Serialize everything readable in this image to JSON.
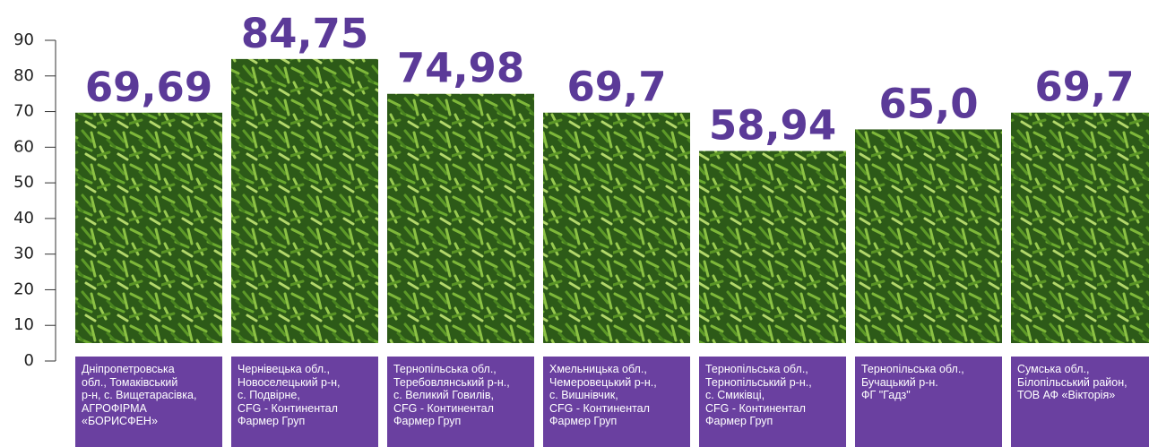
{
  "chart_data": {
    "type": "bar",
    "categories": [
      "Дніпропетровська\nобл., Томаківський\nр-н, с. Вищетарасівка,\nАГРОФІРМА\n«БОРИСФЕН»",
      "Чернівецька обл.,\nНовоселецький р-н,\nс. Подвірне,\nCFG - Континентал\nФармер Груп",
      "Тернопільська обл.,\nТеребовлянський р-н.,\nс. Великий Говилів,\nCFG - Континентал\nФармер Груп",
      "Хмельницька обл.,\nЧемеровецький р-н.,\nс. Вишнівчик,\nCFG - Континентал\nФармер Груп",
      "Тернопільська обл.,\nТернопільський р-н.,\nс. Смиківці,\nCFG - Континентал\nФармер Груп",
      "Тернопільська обл.,\nБучацький р-н.\nФГ \"Гадз\"",
      "Сумська обл.,\nБілопільський район,\nТОВ АФ «Вікторія»"
    ],
    "values": [
      69.69,
      84.75,
      74.98,
      69.7,
      58.94,
      65.0,
      69.7
    ],
    "value_labels": [
      "69,69",
      "84,75",
      "74,98",
      "69,7",
      "58,94",
      "65,0",
      "69,7"
    ],
    "ylim": [
      0,
      90
    ],
    "yticks": [
      0,
      10,
      20,
      30,
      40,
      50,
      60,
      70,
      80,
      90
    ],
    "label_color": "#5b3a98"
  }
}
